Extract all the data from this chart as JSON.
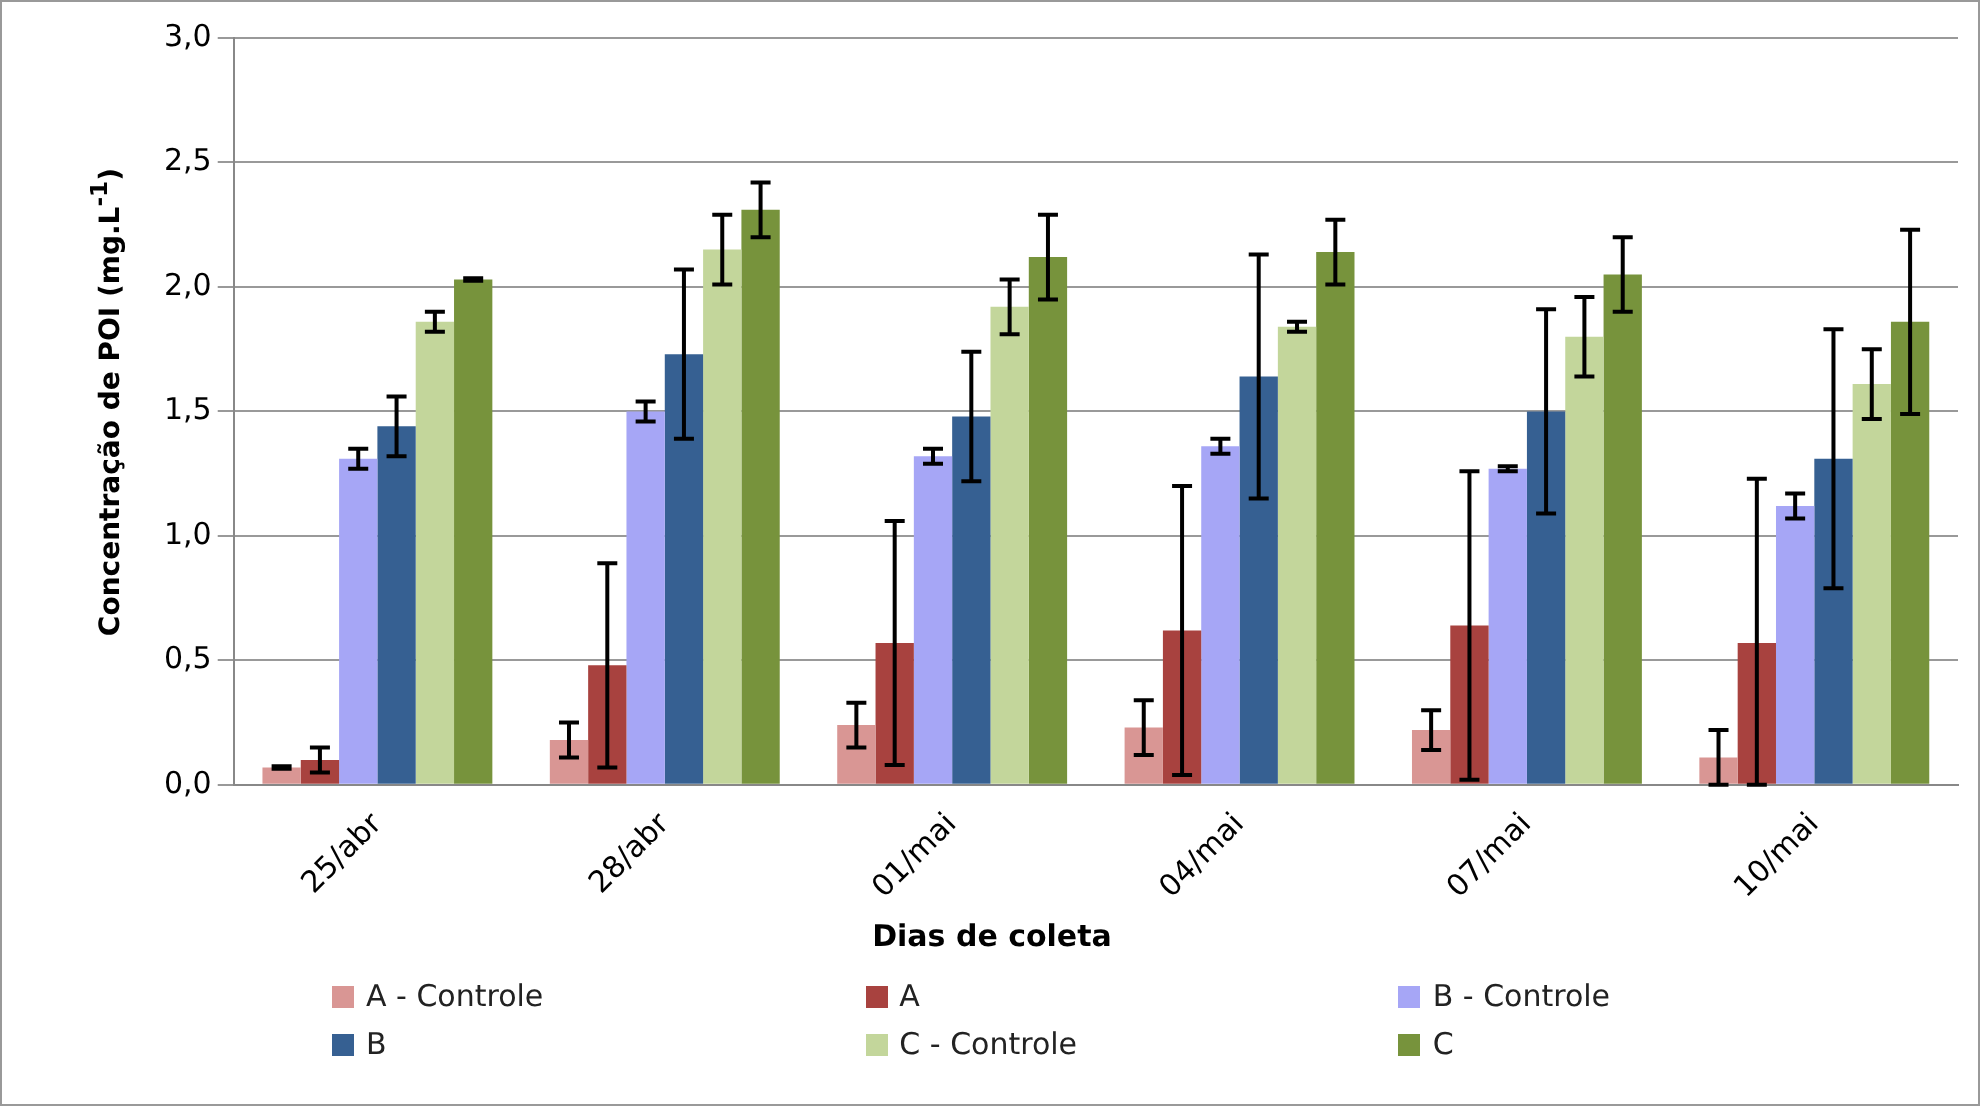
{
  "chart_data": {
    "type": "bar",
    "xlabel": "Dias de coleta",
    "ylabel": "Concentração de POI (mg.L$^{-1}$)",
    "categories": [
      "25/abr",
      "28/abr",
      "01/mai",
      "04/mai",
      "07/mai",
      "10/mai"
    ],
    "series": [
      {
        "name": "A - Controle",
        "color": "#d99694",
        "values": [
          0.07,
          0.18,
          0.24,
          0.23,
          0.22,
          0.11
        ],
        "errors": [
          0.005,
          0.07,
          0.09,
          0.11,
          0.08,
          0.11
        ]
      },
      {
        "name": "A",
        "color": "#a8423f",
        "values": [
          0.1,
          0.48,
          0.57,
          0.62,
          0.64,
          0.57
        ],
        "errors": [
          0.05,
          0.41,
          0.49,
          0.58,
          0.62,
          [
            0.0,
            1.23
          ]
        ]
      },
      {
        "name": "B - Controle",
        "color": "#a6a6f6",
        "values": [
          1.31,
          1.5,
          1.32,
          1.36,
          1.27,
          1.12
        ],
        "errors": [
          0.04,
          0.04,
          0.03,
          0.03,
          0.01,
          0.05
        ]
      },
      {
        "name": "B",
        "color": "#366092",
        "values": [
          1.44,
          1.73,
          1.48,
          1.64,
          1.5,
          1.31
        ],
        "errors": [
          0.12,
          0.34,
          0.26,
          0.49,
          0.41,
          0.52
        ]
      },
      {
        "name": "C - Controle",
        "color": "#c3d69b",
        "values": [
          1.86,
          2.15,
          1.92,
          1.84,
          1.8,
          1.61
        ],
        "errors": [
          0.04,
          0.14,
          0.11,
          0.02,
          0.16,
          0.14
        ]
      },
      {
        "name": "C",
        "color": "#77933c",
        "values": [
          2.03,
          2.31,
          2.12,
          2.14,
          2.05,
          1.86
        ],
        "errors": [
          0.005,
          0.11,
          0.17,
          0.13,
          0.15,
          0.37
        ]
      }
    ],
    "ylim": [
      0,
      3
    ],
    "yticks": [
      {
        "value": 0,
        "label": "0,0"
      },
      {
        "value": 0.5,
        "label": "0,5"
      },
      {
        "value": 1,
        "label": "1,0"
      },
      {
        "value": 1.5,
        "label": "1,5"
      },
      {
        "value": 2,
        "label": "2,0"
      },
      {
        "value": 2.5,
        "label": "2,5"
      },
      {
        "value": 3,
        "label": "3,0"
      }
    ],
    "grid": "y",
    "legend": "bottom"
  }
}
